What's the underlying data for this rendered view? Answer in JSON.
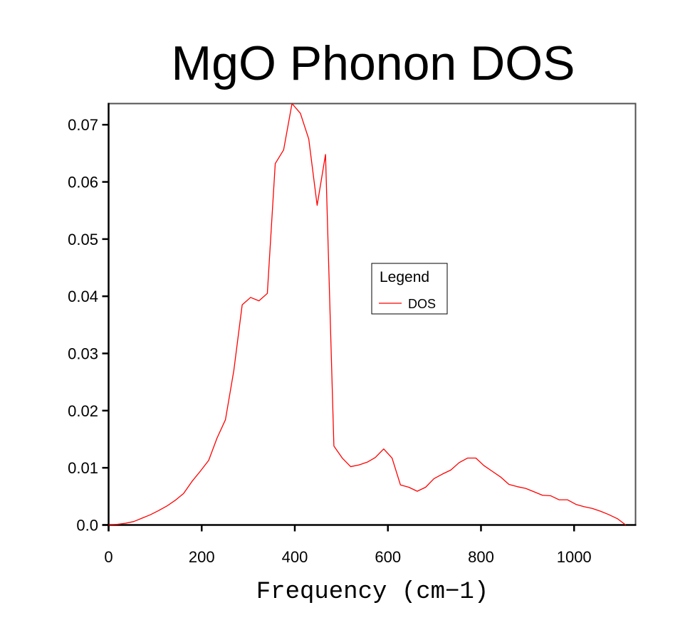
{
  "chart_data": {
    "type": "line",
    "title": "MgO Phonon DOS",
    "xlabel": "Frequency (cm−1)",
    "ylabel": "",
    "xlim": [
      0,
      1132
    ],
    "ylim": [
      0,
      0.0737
    ],
    "xticks": [
      0,
      200,
      400,
      600,
      800,
      1000
    ],
    "xtick_labels": [
      "0",
      "200",
      "400",
      "600",
      "800",
      "1000"
    ],
    "yticks": [
      0,
      0.01,
      0.02,
      0.03,
      0.04,
      0.05,
      0.06,
      0.07
    ],
    "ytick_labels": [
      "0.0",
      "0.01",
      "0.02",
      "0.03",
      "0.04",
      "0.05",
      "0.06",
      "0.07"
    ],
    "grid": false,
    "legend": {
      "title": "Legend",
      "placement": "center-right"
    },
    "series": [
      {
        "name": "DOS",
        "color": "#ff0000",
        "x": [
          0,
          18,
          36,
          54,
          72,
          90,
          107,
          125,
          143,
          161,
          179,
          197,
          215,
          233,
          251,
          269,
          287,
          305,
          323,
          341,
          358,
          376,
          394,
          412,
          430,
          448,
          466,
          484,
          502,
          520,
          538,
          556,
          573,
          591,
          609,
          627,
          645,
          663,
          681,
          699,
          717,
          735,
          753,
          771,
          789,
          806,
          824,
          842,
          860,
          878,
          896,
          914,
          932,
          950,
          968,
          986,
          1004,
          1021,
          1039,
          1057,
          1075,
          1093,
          1111
        ],
        "y": [
          0,
          0.0001,
          0.0003,
          0.0006,
          0.0012,
          0.0018,
          0.0025,
          0.0033,
          0.0043,
          0.0055,
          0.0076,
          0.0094,
          0.0113,
          0.0152,
          0.0184,
          0.027,
          0.0385,
          0.0398,
          0.0392,
          0.0405,
          0.0632,
          0.0656,
          0.0737,
          0.072,
          0.0675,
          0.0559,
          0.0648,
          0.0138,
          0.0117,
          0.0102,
          0.0105,
          0.011,
          0.0118,
          0.0133,
          0.0117,
          0.007,
          0.0066,
          0.0059,
          0.0066,
          0.0081,
          0.0089,
          0.0096,
          0.0109,
          0.0117,
          0.0117,
          0.0104,
          0.0094,
          0.0084,
          0.0071,
          0.0067,
          0.0064,
          0.0058,
          0.0052,
          0.0051,
          0.0044,
          0.0044,
          0.0036,
          0.0032,
          0.0029,
          0.0024,
          0.0018,
          0.0011,
          0.0
        ]
      }
    ]
  },
  "colors": {
    "frame": "#505050",
    "axis": "#000000",
    "series": "#ff0000"
  }
}
